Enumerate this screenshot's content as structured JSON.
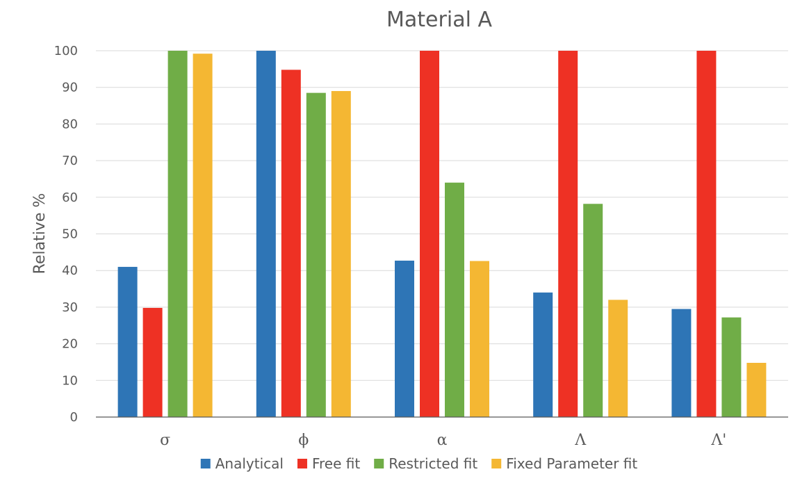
{
  "chart_data": {
    "type": "bar",
    "title": "Material A",
    "xlabel": "",
    "ylabel": "Relative %",
    "ylim": [
      0,
      100
    ],
    "yticks": [
      0,
      10,
      20,
      30,
      40,
      50,
      60,
      70,
      80,
      90,
      100
    ],
    "grid": true,
    "legend_position": "bottom",
    "categories": [
      "σ",
      "ϕ",
      "α",
      "Λ",
      "Λ'"
    ],
    "series": [
      {
        "name": "Analytical",
        "color": "#2e75b6",
        "values": [
          41,
          100,
          42.7,
          34,
          29.5
        ]
      },
      {
        "name": "Free fit",
        "color": "#ee3124",
        "values": [
          29.8,
          94.8,
          100,
          100,
          100
        ]
      },
      {
        "name": "Restricted fit",
        "color": "#70ad47",
        "values": [
          100,
          88.5,
          64,
          58.2,
          27.2
        ]
      },
      {
        "name": "Fixed Parameter fit",
        "color": "#f4b733",
        "values": [
          99.2,
          89,
          42.6,
          32,
          14.8
        ]
      }
    ]
  }
}
